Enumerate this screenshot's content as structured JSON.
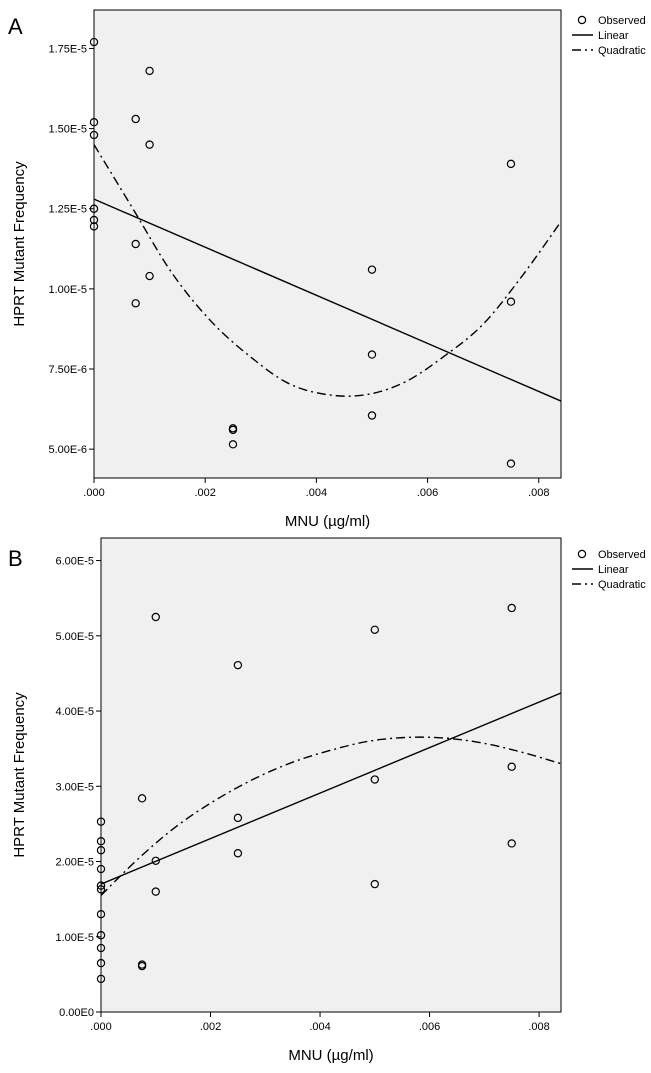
{
  "chart_data": [
    {
      "type": "scatter",
      "panel_label": "A",
      "xlabel": "MNU (µg/ml)",
      "ylabel": "HPRT Mutant Frequency",
      "xlim": [
        0,
        0.0084
      ],
      "ylim": [
        4.1e-06,
        1.87e-05
      ],
      "x_ticks": [
        0,
        0.002,
        0.004,
        0.006,
        0.008
      ],
      "x_tick_labels": [
        ".000",
        ".002",
        ".004",
        ".006",
        ".008"
      ],
      "y_ticks": [
        5e-06,
        7.5e-06,
        1e-05,
        1.25e-05,
        1.5e-05,
        1.75e-05
      ],
      "y_tick_labels": [
        "5.00E-6",
        "7.50E-6",
        "1.00E-5",
        "1.25E-5",
        "1.50E-5",
        "1.75E-5"
      ],
      "legend": {
        "position": "outside-right",
        "entries": [
          "Observed",
          "Linear",
          "Quadratic"
        ]
      },
      "grid": false,
      "observed": [
        {
          "x": 0,
          "y": 1.77e-05
        },
        {
          "x": 0,
          "y": 1.52e-05
        },
        {
          "x": 0,
          "y": 1.48e-05
        },
        {
          "x": 0,
          "y": 1.25e-05
        },
        {
          "x": 0,
          "y": 1.215e-05
        },
        {
          "x": 0,
          "y": 1.195e-05
        },
        {
          "x": 0.00075,
          "y": 1.53e-05
        },
        {
          "x": 0.00075,
          "y": 1.14e-05
        },
        {
          "x": 0.00075,
          "y": 9.55e-06
        },
        {
          "x": 0.001,
          "y": 1.68e-05
        },
        {
          "x": 0.001,
          "y": 1.45e-05
        },
        {
          "x": 0.001,
          "y": 1.04e-05
        },
        {
          "x": 0.0025,
          "y": 5.65e-06
        },
        {
          "x": 0.0025,
          "y": 5.6e-06
        },
        {
          "x": 0.0025,
          "y": 5.15e-06
        },
        {
          "x": 0.005,
          "y": 1.06e-05
        },
        {
          "x": 0.005,
          "y": 7.95e-06
        },
        {
          "x": 0.005,
          "y": 6.05e-06
        },
        {
          "x": 0.0075,
          "y": 1.39e-05
        },
        {
          "x": 0.0075,
          "y": 9.6e-06
        },
        {
          "x": 0.0075,
          "y": 4.55e-06
        }
      ],
      "linear": {
        "x": [
          0,
          0.0084
        ],
        "y": [
          1.28e-05,
          6.5e-06
        ]
      },
      "quadratic": {
        "x": [
          0,
          0.0007,
          0.0014,
          0.0021,
          0.0028,
          0.0035,
          0.0042,
          0.0049,
          0.0056,
          0.0063,
          0.007,
          0.0077,
          0.0084
        ],
        "y": [
          1.45e-05,
          1.25e-05,
          1.05e-05,
          9e-06,
          7.9e-06,
          7.05e-06,
          6.7e-06,
          6.7e-06,
          7.1e-06,
          7.9e-06,
          8.9e-06,
          1.04e-05,
          1.21e-05
        ]
      }
    },
    {
      "type": "scatter",
      "panel_label": "B",
      "xlabel": "MNU (µg/ml)",
      "ylabel": "HPRT Mutant Frequency",
      "xlim": [
        0,
        0.0084
      ],
      "ylim": [
        0,
        6.3e-05
      ],
      "x_ticks": [
        0,
        0.002,
        0.004,
        0.006,
        0.008
      ],
      "x_tick_labels": [
        ".000",
        ".002",
        ".004",
        ".006",
        ".008"
      ],
      "y_ticks": [
        0,
        1e-05,
        2e-05,
        3e-05,
        4e-05,
        5e-05,
        6e-05
      ],
      "y_tick_labels": [
        "0.00E0",
        "1.00E-5",
        "2.00E-5",
        "3.00E-5",
        "4.00E-5",
        "5.00E-5",
        "6.00E-5"
      ],
      "legend": {
        "position": "outside-right",
        "entries": [
          "Observed",
          "Linear",
          "Quadratic"
        ]
      },
      "grid": false,
      "observed": [
        {
          "x": 0,
          "y": 2.53e-05
        },
        {
          "x": 0,
          "y": 2.27e-05
        },
        {
          "x": 0,
          "y": 2.15e-05
        },
        {
          "x": 0,
          "y": 1.9e-05
        },
        {
          "x": 0,
          "y": 1.68e-05
        },
        {
          "x": 0,
          "y": 1.63e-05
        },
        {
          "x": 0,
          "y": 1.3e-05
        },
        {
          "x": 0,
          "y": 1.02e-05
        },
        {
          "x": 0,
          "y": 8.5e-06
        },
        {
          "x": 0,
          "y": 6.5e-06
        },
        {
          "x": 0,
          "y": 4.4e-06
        },
        {
          "x": 0.00075,
          "y": 2.84e-05
        },
        {
          "x": 0.00075,
          "y": 6.3e-06
        },
        {
          "x": 0.00075,
          "y": 6.1e-06
        },
        {
          "x": 0.001,
          "y": 5.25e-05
        },
        {
          "x": 0.001,
          "y": 2.01e-05
        },
        {
          "x": 0.001,
          "y": 1.6e-05
        },
        {
          "x": 0.0025,
          "y": 4.61e-05
        },
        {
          "x": 0.0025,
          "y": 2.58e-05
        },
        {
          "x": 0.0025,
          "y": 2.11e-05
        },
        {
          "x": 0.005,
          "y": 5.08e-05
        },
        {
          "x": 0.005,
          "y": 3.09e-05
        },
        {
          "x": 0.005,
          "y": 1.7e-05
        },
        {
          "x": 0.0075,
          "y": 5.37e-05
        },
        {
          "x": 0.0075,
          "y": 3.26e-05
        },
        {
          "x": 0.0075,
          "y": 2.24e-05
        }
      ],
      "linear": {
        "x": [
          0,
          0.0084
        ],
        "y": [
          1.7e-05,
          4.24e-05
        ]
      },
      "quadratic": {
        "x": [
          0,
          0.0007,
          0.0014,
          0.0021,
          0.0028,
          0.0035,
          0.0042,
          0.0049,
          0.0056,
          0.0063,
          0.007,
          0.0077,
          0.0084
        ],
        "y": [
          1.55e-05,
          2.05e-05,
          2.48e-05,
          2.82e-05,
          3.1e-05,
          3.32e-05,
          3.48e-05,
          3.6e-05,
          3.65e-05,
          3.64e-05,
          3.57e-05,
          3.45e-05,
          3.3e-05
        ]
      }
    }
  ]
}
